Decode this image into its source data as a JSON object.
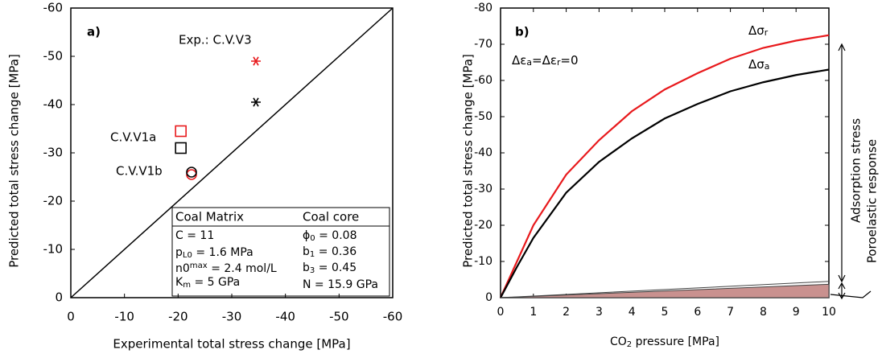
{
  "chart_data": [
    {
      "type": "scatter",
      "label": "a)",
      "xlabel": "Experimental total stress change [MPa]",
      "ylabel": "Predicted total stress change [MPa]",
      "xlim": [
        0,
        -60
      ],
      "ylim": [
        0,
        -60
      ],
      "xticks": [
        0,
        -10,
        -20,
        -30,
        -40,
        -50,
        -60
      ],
      "yticks": [
        0,
        -10,
        -20,
        -30,
        -40,
        -50,
        -60
      ],
      "series": [
        {
          "color": "#e8191c",
          "markers": [
            "star",
            "square",
            "circle"
          ],
          "x": [
            -34.5,
            -20.5,
            -22.5
          ],
          "values": [
            -49,
            -34.5,
            -25.5
          ]
        },
        {
          "color": "#000000",
          "markers": [
            "star",
            "square",
            "circle"
          ],
          "x": [
            -34.5,
            -20.5,
            -22.5
          ],
          "values": [
            -40.5,
            -31,
            -26
          ]
        }
      ],
      "annotations": [
        "Exp.: C.V.V3",
        "C.V.V1a",
        "C.V.V1b"
      ],
      "table": {
        "header": [
          "Coal Matrix",
          "Coal core"
        ],
        "rows": [
          [
            "C = 11",
            [
              "ϕ",
              {
                "sub": "0"
              },
              " = 0.08"
            ]
          ],
          [
            [
              "p",
              {
                "sub": "L0"
              },
              " = 1.6 MPa"
            ],
            [
              "b",
              {
                "sub": "1"
              },
              " = 0.36"
            ]
          ],
          [
            [
              "n0",
              {
                "sup": "max"
              },
              " = 2.4 mol/L"
            ],
            [
              "b",
              {
                "sub": "3"
              },
              " = 0.45"
            ]
          ],
          [
            [
              "K",
              {
                "sub": "m"
              },
              " = 5 GPa"
            ],
            "N = 15.9 GPa"
          ]
        ]
      }
    },
    {
      "type": "line",
      "label": "b)",
      "xlabel": [
        "CO",
        {
          "sub": "2"
        },
        " pressure [MPa]"
      ],
      "ylabel": "Predicted total stress change [MPa]",
      "xlim": [
        0,
        10
      ],
      "ylim": [
        0,
        -80
      ],
      "xticks": [
        0,
        1,
        2,
        3,
        4,
        5,
        6,
        7,
        8,
        9,
        10
      ],
      "yticks": [
        0,
        -10,
        -20,
        -30,
        -40,
        -50,
        -60,
        -70,
        -80
      ],
      "series": [
        {
          "name": [
            "Δσ",
            {
              "sub": "r"
            }
          ],
          "color": "#e8191c",
          "x": [
            0,
            0.5,
            1,
            2,
            3,
            4,
            5,
            6,
            7,
            8,
            9,
            10
          ],
          "values": [
            0,
            -10,
            -20,
            -34,
            -43.5,
            -51.5,
            -57.5,
            -62,
            -66,
            -69,
            -71,
            -72.5
          ]
        },
        {
          "name": [
            "Δσ",
            {
              "sub": "a"
            }
          ],
          "color": "#000000",
          "x": [
            0,
            0.5,
            1,
            2,
            3,
            4,
            5,
            6,
            7,
            8,
            9,
            10
          ],
          "values": [
            0,
            -8.5,
            -16.5,
            -29,
            -37.5,
            -44,
            -49.5,
            -53.5,
            -57,
            -59.5,
            -61.5,
            -63
          ]
        },
        {
          "color": "#444444",
          "x": [
            0,
            10
          ],
          "values": [
            0,
            -4.5
          ]
        },
        {
          "color": "#444444",
          "fill": "#c9918f",
          "x": [
            0,
            10
          ],
          "values": [
            0,
            -3.7
          ]
        }
      ],
      "annotations": [
        [
          "Δε",
          {
            "sub": "a"
          },
          "=Δε",
          {
            "sub": "r"
          },
          "=0"
        ],
        "Adsorption stress",
        "Poroelastic response"
      ]
    }
  ]
}
